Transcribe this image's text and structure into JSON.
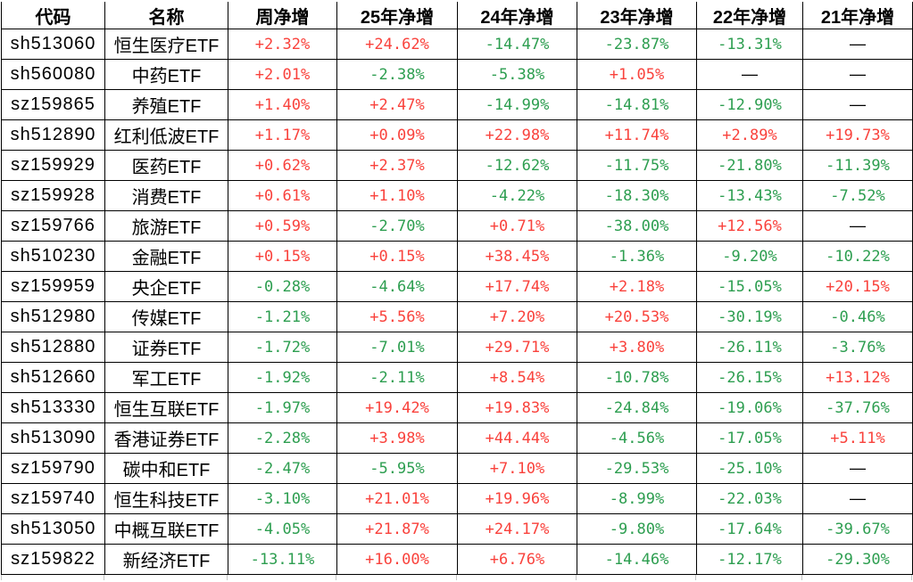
{
  "colors": {
    "positive_red": "#f9423c",
    "negative_green": "#2d9e50",
    "text_black": "#000000",
    "border_black": "#000000",
    "gridline_gray": "#c4c4c4"
  },
  "table": {
    "columns": [
      "代码",
      "名称",
      "周净增",
      "25年净增",
      "24年净增",
      "23年净增",
      "22年净增",
      "21年净增"
    ],
    "rows": [
      {
        "code": "sh513060",
        "name": "恒生医疗ETF",
        "values": [
          "+2.32%",
          "+24.62%",
          "-14.47%",
          "-23.87%",
          "-13.31%",
          "—"
        ]
      },
      {
        "code": "sh560080",
        "name": "中药ETF",
        "values": [
          "+2.01%",
          "-2.38%",
          "-5.38%",
          "+1.05%",
          "—",
          "—"
        ]
      },
      {
        "code": "sz159865",
        "name": "养殖ETF",
        "values": [
          "+1.40%",
          "+2.47%",
          "-14.99%",
          "-14.81%",
          "-12.90%",
          "—"
        ]
      },
      {
        "code": "sh512890",
        "name": "红利低波ETF",
        "values": [
          "+1.17%",
          "+0.09%",
          "+22.98%",
          "+11.74%",
          "+2.89%",
          "+19.73%"
        ]
      },
      {
        "code": "sz159929",
        "name": "医药ETF",
        "values": [
          "+0.62%",
          "+2.37%",
          "-12.62%",
          "-11.75%",
          "-21.80%",
          "-11.39%"
        ]
      },
      {
        "code": "sz159928",
        "name": "消费ETF",
        "values": [
          "+0.61%",
          "+1.10%",
          "-4.22%",
          "-18.30%",
          "-13.43%",
          "-7.52%"
        ]
      },
      {
        "code": "sz159766",
        "name": "旅游ETF",
        "values": [
          "+0.59%",
          "-2.70%",
          "+0.71%",
          "-38.00%",
          "+12.56%",
          "—"
        ]
      },
      {
        "code": "sh510230",
        "name": "金融ETF",
        "values": [
          "+0.15%",
          "+0.15%",
          "+38.45%",
          "-1.36%",
          "-9.20%",
          "-10.22%"
        ]
      },
      {
        "code": "sz159959",
        "name": "央企ETF",
        "values": [
          "-0.28%",
          "-4.64%",
          "+17.74%",
          "+2.18%",
          "-15.05%",
          "+20.15%"
        ]
      },
      {
        "code": "sh512980",
        "name": "传媒ETF",
        "values": [
          "-1.21%",
          "+5.56%",
          "+7.20%",
          "+20.53%",
          "-30.19%",
          "-0.46%"
        ]
      },
      {
        "code": "sh512880",
        "name": "证券ETF",
        "values": [
          "-1.72%",
          "-7.01%",
          "+29.71%",
          "+3.80%",
          "-26.11%",
          "-3.76%"
        ]
      },
      {
        "code": "sh512660",
        "name": "军工ETF",
        "values": [
          "-1.92%",
          "-2.11%",
          "+8.54%",
          "-10.78%",
          "-26.15%",
          "+13.12%"
        ]
      },
      {
        "code": "sh513330",
        "name": "恒生互联ETF",
        "values": [
          "-1.97%",
          "+19.42%",
          "+19.83%",
          "-24.84%",
          "-19.06%",
          "-37.76%"
        ]
      },
      {
        "code": "sh513090",
        "name": "香港证券ETF",
        "values": [
          "-2.28%",
          "+3.98%",
          "+44.44%",
          "-4.56%",
          "-17.05%",
          "+5.11%"
        ]
      },
      {
        "code": "sz159790",
        "name": "碳中和ETF",
        "values": [
          "-2.47%",
          "-5.95%",
          "+7.10%",
          "-29.53%",
          "-25.10%",
          "—"
        ]
      },
      {
        "code": "sz159740",
        "name": "恒生科技ETF",
        "values": [
          "-3.10%",
          "+21.01%",
          "+19.96%",
          "-8.99%",
          "-22.03%",
          "—"
        ]
      },
      {
        "code": "sh513050",
        "name": "中概互联ETF",
        "values": [
          "-4.05%",
          "+21.87%",
          "+24.17%",
          "-9.80%",
          "-17.64%",
          "-39.67%"
        ]
      },
      {
        "code": "sz159822",
        "name": "新经济ETF",
        "values": [
          "-13.11%",
          "+16.00%",
          "+6.76%",
          "-14.46%",
          "-12.17%",
          "-29.30%"
        ]
      }
    ]
  }
}
